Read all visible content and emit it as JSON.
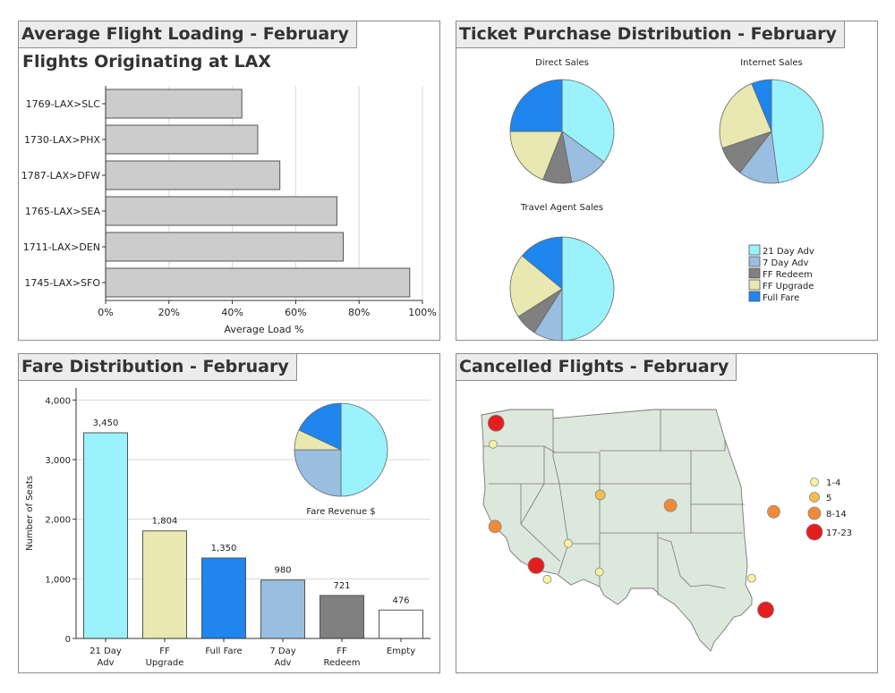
{
  "panels": {
    "flight_loading": {
      "title": "Average Flight Loading - February",
      "subtitle": "Flights Originating at LAX"
    },
    "ticket_distribution": {
      "title": "Ticket Purchase Distribution - February"
    },
    "fare_distribution": {
      "title": "Fare Distribution - February"
    },
    "cancelled_flights": {
      "title": "Cancelled Flights - February"
    }
  },
  "chart_data": [
    {
      "type": "bar",
      "orientation": "horizontal",
      "categories": [
        "1769-LAX>SLC",
        "1730-LAX>PHX",
        "1787-LAX>DFW",
        "1765-LAX>SEA",
        "1711-LAX>DEN",
        "1745-LAX>SFO"
      ],
      "values": [
        43,
        48,
        55,
        73,
        75,
        96
      ],
      "xlabel": "Average Load %",
      "xlim": [
        0,
        100
      ],
      "x_ticks": [
        "0%",
        "20%",
        "40%",
        "60%",
        "80%",
        "100%"
      ],
      "bar_color": "#cccccc",
      "grid": "vertical"
    },
    {
      "type": "pie",
      "legend": {
        "placement": "bottom-right",
        "items": [
          {
            "label": "21 Day Adv",
            "color": "#99f2fc"
          },
          {
            "label": "7 Day Adv",
            "color": "#99bee0"
          },
          {
            "label": "FF Redeem",
            "color": "#808080"
          },
          {
            "label": "FF Upgrade",
            "color": "#e8e8b0"
          },
          {
            "label": "Full Fare",
            "color": "#1e86ee"
          }
        ]
      },
      "pies": [
        {
          "title": "Direct Sales",
          "values": [
            35,
            12,
            9,
            19,
            25
          ]
        },
        {
          "title": "Internet Sales",
          "values": [
            46,
            12,
            9,
            23,
            6
          ]
        },
        {
          "title": "Travel Agent Sales",
          "values": [
            50,
            9,
            7,
            20,
            14
          ]
        }
      ]
    },
    {
      "type": "bar",
      "categories": [
        "21 Day\nAdv",
        "FF\nUpgrade",
        "Full Fare",
        "7 Day\nAdv",
        "FF\nRedeem",
        "Empty"
      ],
      "values": [
        3450,
        1804,
        1350,
        980,
        721,
        476
      ],
      "value_labels": [
        "3,450",
        "1,804",
        "1,350",
        "980",
        "721",
        "476"
      ],
      "colors": [
        "#99f2fc",
        "#e8e8b0",
        "#1e86ee",
        "#99bee0",
        "#808080",
        "#ffffff"
      ],
      "ylabel": "Number of Seats",
      "ylim": [
        0,
        4200
      ],
      "y_ticks": [
        "0",
        "1,000",
        "2,000",
        "3,000",
        "4,000"
      ],
      "grid": "horizontal",
      "inset_pie": {
        "title": "Fare Revenue $",
        "values": [
          50,
          25,
          7,
          18
        ],
        "colors": [
          "#99f2fc",
          "#99bee0",
          "#e8e8b0",
          "#1e86ee"
        ]
      }
    },
    {
      "type": "map",
      "region": "Western United States",
      "land_color": "#dde8dc",
      "legend": {
        "placement": "right",
        "items": [
          {
            "label": "1-4",
            "color": "#f8f2a0",
            "size": "small"
          },
          {
            "label": "5",
            "color": "#f5c04a",
            "size": "medium"
          },
          {
            "label": "8-14",
            "color": "#f08a38",
            "size": "large"
          },
          {
            "label": "17-23",
            "color": "#e41e1e",
            "size": "x-large"
          }
        ]
      },
      "points": [
        {
          "lon": -122.3,
          "lat": 47.5,
          "bin": "17-23"
        },
        {
          "lon": -122.6,
          "lat": 45.5,
          "bin": "1-4"
        },
        {
          "lon": -122.4,
          "lat": 37.7,
          "bin": "8-14"
        },
        {
          "lon": -118.3,
          "lat": 34.0,
          "bin": "17-23"
        },
        {
          "lon": -117.2,
          "lat": 32.7,
          "bin": "1-4"
        },
        {
          "lon": -115.1,
          "lat": 36.1,
          "bin": "1-4"
        },
        {
          "lon": -112.0,
          "lat": 33.4,
          "bin": "1-4"
        },
        {
          "lon": -111.9,
          "lat": 40.7,
          "bin": "5"
        },
        {
          "lon": -104.9,
          "lat": 39.7,
          "bin": "8-14"
        },
        {
          "lon": -94.6,
          "lat": 39.1,
          "bin": "8-14"
        },
        {
          "lon": -96.8,
          "lat": 32.8,
          "bin": "1-4"
        },
        {
          "lon": -95.4,
          "lat": 29.8,
          "bin": "17-23"
        }
      ]
    }
  ]
}
